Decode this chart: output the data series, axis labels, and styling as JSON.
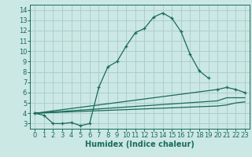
{
  "title": "",
  "xlabel": "Humidex (Indice chaleur)",
  "background_color": "#cce8e4",
  "grid_color": "#aacfcb",
  "line_color": "#1a6b5a",
  "xlim": [
    -0.5,
    23.5
  ],
  "ylim": [
    2.5,
    14.5
  ],
  "xticks": [
    0,
    1,
    2,
    3,
    4,
    5,
    6,
    7,
    8,
    9,
    10,
    11,
    12,
    13,
    14,
    15,
    16,
    17,
    18,
    19,
    20,
    21,
    22,
    23
  ],
  "yticks": [
    3,
    4,
    5,
    6,
    7,
    8,
    9,
    10,
    11,
    12,
    13,
    14
  ],
  "line1_x": [
    0,
    1,
    2,
    3,
    4,
    5,
    6,
    7,
    8,
    9,
    10,
    11,
    12,
    13,
    14,
    15,
    16,
    17,
    18,
    19
  ],
  "line1_y": [
    4.0,
    3.8,
    3.0,
    3.0,
    3.1,
    2.8,
    3.0,
    6.5,
    8.5,
    9.0,
    10.5,
    11.8,
    12.2,
    13.3,
    13.7,
    13.2,
    11.9,
    9.7,
    8.1,
    7.4
  ],
  "line2_x": [
    0,
    20,
    21,
    22,
    23
  ],
  "line2_y": [
    4.0,
    6.3,
    6.5,
    6.3,
    6.0
  ],
  "line3_x": [
    0,
    20,
    21,
    22,
    23
  ],
  "line3_y": [
    4.0,
    5.2,
    5.5,
    5.5,
    5.5
  ],
  "line4_x": [
    0,
    20,
    21,
    22,
    23
  ],
  "line4_y": [
    4.0,
    4.7,
    4.8,
    5.0,
    5.1
  ],
  "tick_fontsize": 6,
  "label_fontsize": 7
}
